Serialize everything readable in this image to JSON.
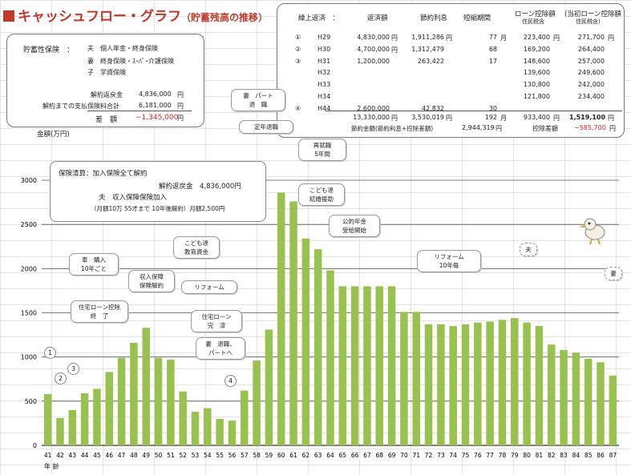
{
  "title": {
    "main": "キャッシュフロー・グラフ",
    "sub": "（貯蓄残高の推移）"
  },
  "insurance": {
    "label": "貯蓄性保険　：",
    "items": [
      "夫　個人年金・終身保険",
      "妻　終身保険・ｽｰﾊﾟｰ介護保険",
      "子　学資保険"
    ],
    "refund_label": "解約返戻金",
    "refund_value": "4,836,000",
    "refund_unit": "円",
    "paid_label": "解約までの支払保険料合計",
    "paid_value": "6,181,000",
    "paid_unit": "円",
    "diff_label": "差　額",
    "diff_value": "−1,345,000",
    "diff_unit": "円"
  },
  "loan": {
    "headers": {
      "h1": "繰上返済　：",
      "h2": "返済額",
      "h3": "節約利息",
      "h4": "短縮期間",
      "h5a": "ローン控除額",
      "h5b": "住民税含",
      "h6a": "(当初ローン控除額",
      "h6b": "住民税含)"
    },
    "rows": [
      {
        "no": "①",
        "year": "H29",
        "pay": "4,830,000",
        "payu": "円",
        "int": "1,911,286",
        "intu": "円",
        "per": "77",
        "peru": "月",
        "ded": "223,400",
        "dedu": "円",
        "orig": "271,700",
        "origu": "円"
      },
      {
        "no": "②",
        "year": "H30",
        "pay": "4,700,000",
        "payu": "円",
        "int": "1,312,479",
        "intu": "",
        "per": "68",
        "peru": "",
        "ded": "169,200",
        "dedu": "",
        "orig": "264,400",
        "origu": ""
      },
      {
        "no": "③",
        "year": "H31",
        "pay": "1,200,000",
        "payu": "",
        "int": "263,422",
        "intu": "",
        "per": "17",
        "peru": "",
        "ded": "148,600",
        "dedu": "",
        "orig": "257,000",
        "origu": ""
      },
      {
        "no": "",
        "year": "H32",
        "pay": "",
        "payu": "",
        "int": "",
        "intu": "",
        "per": "",
        "peru": "",
        "ded": "139,600",
        "dedu": "",
        "orig": "249,600",
        "origu": ""
      },
      {
        "no": "",
        "year": "H33",
        "pay": "",
        "payu": "",
        "int": "",
        "intu": "",
        "per": "",
        "peru": "",
        "ded": "130,800",
        "dedu": "",
        "orig": "242,000",
        "origu": ""
      },
      {
        "no": "",
        "year": "H34",
        "pay": "",
        "payu": "",
        "int": "",
        "intu": "",
        "per": "",
        "peru": "",
        "ded": "121,800",
        "dedu": "",
        "orig": "234,400",
        "origu": ""
      },
      {
        "no": "④",
        "year": "H44",
        "pay": "2,600,000",
        "payu": "",
        "int": "42,832",
        "intu": "",
        "per": "30",
        "peru": "",
        "ded": "",
        "dedu": "",
        "orig": "",
        "origu": ""
      }
    ],
    "total": {
      "pay": "13,330,000",
      "payu": "円",
      "int": "3,530,019",
      "intu": "円",
      "per": "192",
      "peru": "月",
      "ded": "933,400",
      "dedu": "円",
      "orig": "1,519,100",
      "origu": "円"
    },
    "footer": {
      "label": "節約金額(節約利息+控除差額)",
      "value": "2,944,319",
      "unit": "円",
      "diff_label": "控除差額",
      "diff_value": "−585,700",
      "diff_unit": "円"
    }
  },
  "note": {
    "l1": "保険清算：加入保険全て解約",
    "l2": "解約返戻金　4,836,000円",
    "l3": "夫　収入保障保険加入",
    "l4": "（月額10万 55才まで 10年後解約）月額2,500円"
  },
  "callouts": {
    "car": [
      "車　購入",
      "10年ごと"
    ],
    "income": [
      "収入保障",
      "保険解約"
    ],
    "edu": [
      "こども達",
      "教育資金"
    ],
    "reform1": [
      "リフォーム"
    ],
    "loan_end": [
      "住宅ローン控除",
      "終　了"
    ],
    "loan_done": [
      "住宅ローン",
      "完　済"
    ],
    "wife_retire": [
      "妻　退職、",
      "パートへ"
    ],
    "wife_part": [
      "妻　パート",
      "退　職"
    ],
    "retire": [
      "定年退職"
    ],
    "rehire": [
      "再就職",
      "5年間"
    ],
    "children": [
      "こども達",
      "結婚援助"
    ],
    "pension": [
      "公的年金",
      "受給開始"
    ],
    "reform2": [
      "リフォーム",
      "10年毎"
    ],
    "husband": [
      "夫"
    ],
    "wife": [
      "妻"
    ]
  },
  "markers": [
    "1",
    "2",
    "3",
    "4"
  ],
  "unit_label": "金額(万円)",
  "age_label": "年 齢",
  "chart_data": {
    "type": "bar",
    "categories": [
      "41",
      "42",
      "43",
      "44",
      "45",
      "46",
      "47",
      "48",
      "49",
      "50",
      "51",
      "52",
      "53",
      "54",
      "55",
      "56",
      "57",
      "58",
      "59",
      "60",
      "61",
      "62",
      "63",
      "64",
      "65",
      "66",
      "67",
      "68",
      "69",
      "70",
      "71",
      "72",
      "73",
      "74",
      "75",
      "76",
      "77",
      "78",
      "79",
      "80",
      "81",
      "82",
      "83",
      "84",
      "85",
      "86",
      "87"
    ],
    "values": [
      580,
      310,
      400,
      590,
      640,
      830,
      990,
      1160,
      1330,
      990,
      970,
      610,
      380,
      420,
      300,
      280,
      620,
      960,
      1310,
      2860,
      2760,
      2340,
      2220,
      1980,
      1800,
      1800,
      1800,
      1800,
      1800,
      1510,
      1510,
      1370,
      1370,
      1350,
      1370,
      1390,
      1400,
      1420,
      1440,
      1390,
      1350,
      1140,
      1080,
      1050,
      980,
      940,
      790
    ],
    "ylim": [
      0,
      3000
    ],
    "yticks": [
      0,
      500,
      1000,
      1500,
      2000,
      2500,
      3000
    ],
    "color": "#99c14f",
    "xlabel": "年 齢",
    "ylabel": "金額(万円)"
  }
}
